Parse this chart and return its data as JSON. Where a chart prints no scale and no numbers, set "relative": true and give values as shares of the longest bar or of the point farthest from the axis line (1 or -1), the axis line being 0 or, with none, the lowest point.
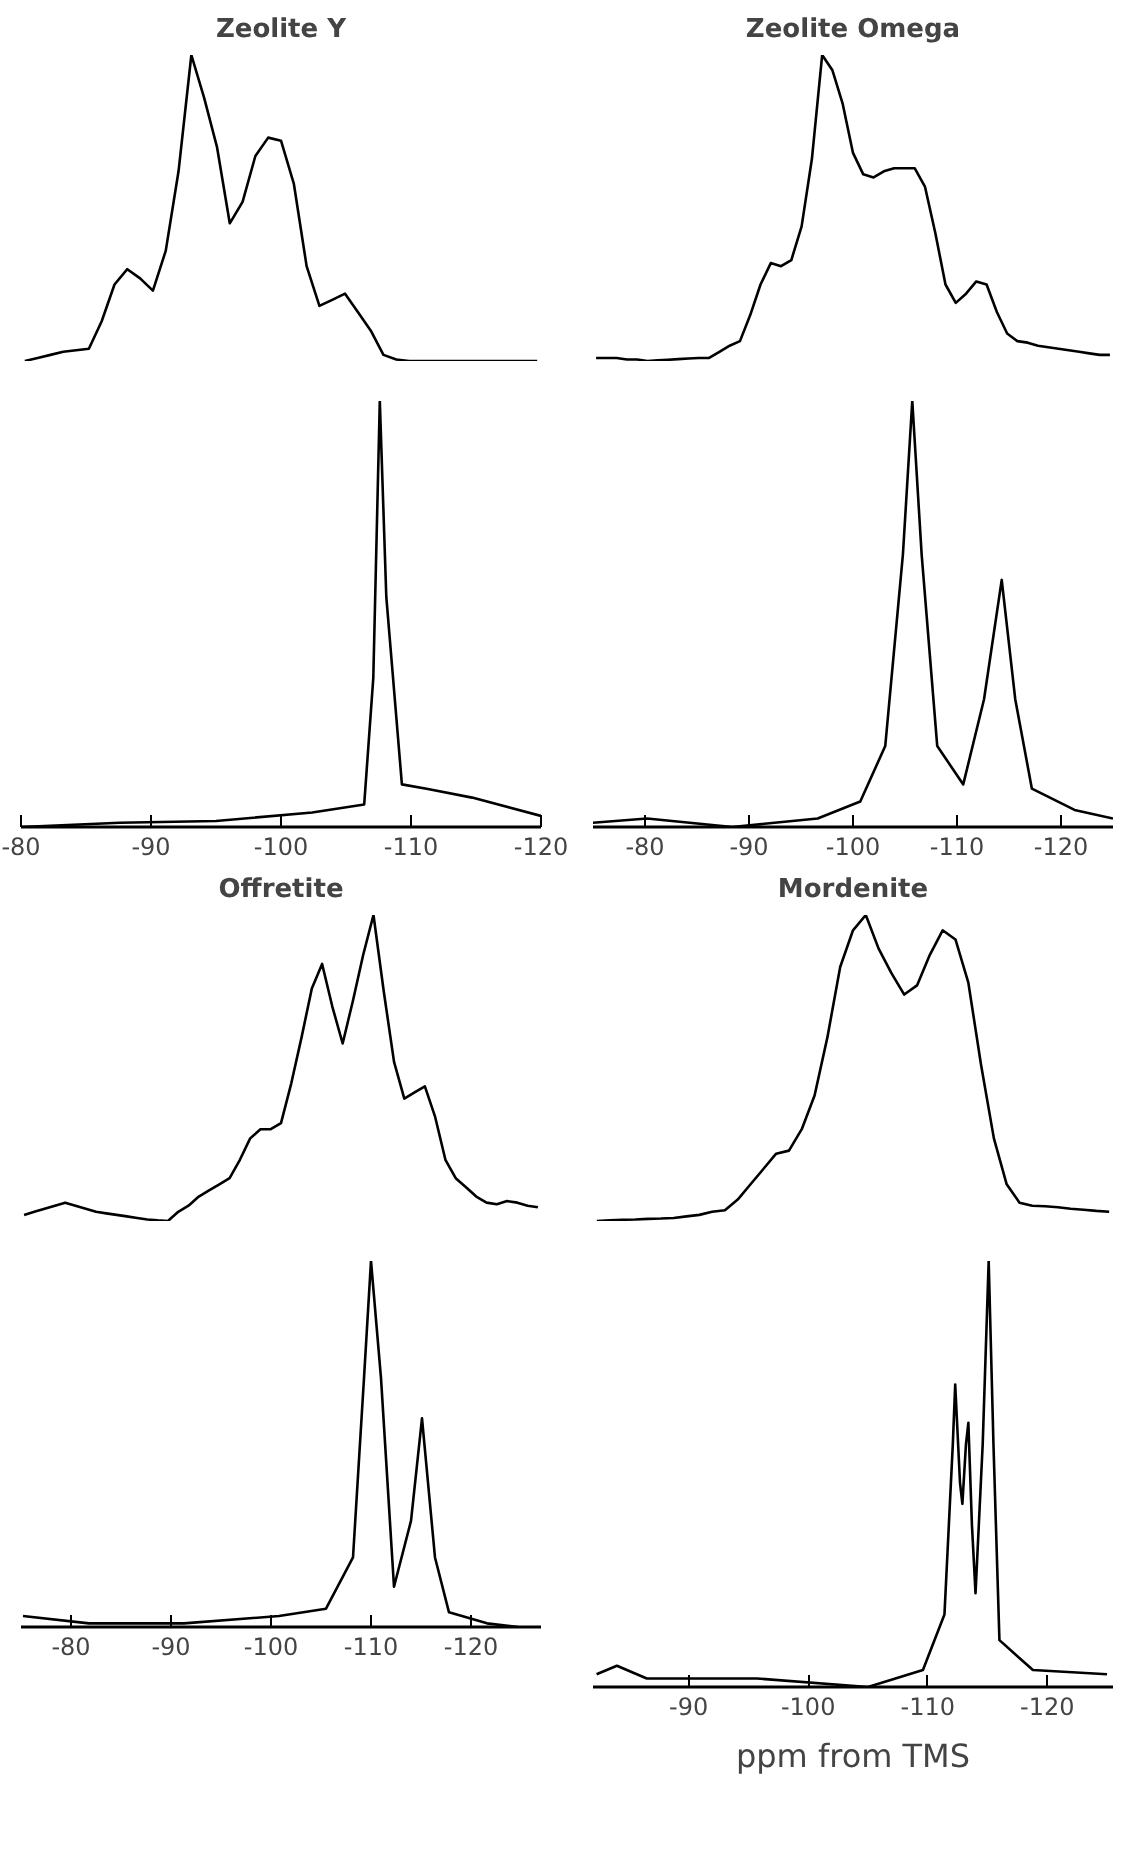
{
  "chart_data": [
    {
      "type": "line",
      "title": "Zeolite Y",
      "relative": true,
      "tick_labels": false,
      "categories": [
        null,
        null,
        null,
        null,
        null,
        null,
        null,
        null,
        null,
        null,
        null,
        null,
        null,
        null,
        null,
        null,
        null,
        null,
        null,
        null,
        null,
        null,
        null,
        null,
        null,
        null,
        null,
        null,
        null,
        null,
        null,
        null,
        null,
        null,
        null,
        null,
        null,
        null,
        null,
        null,
        null
      ],
      "series": [
        {
          "color": "#000000",
          "values": [
            0,
            0.01,
            0.02,
            0.03,
            0.035,
            0.04,
            0.13,
            0.25,
            0.3,
            0.27,
            0.23,
            0.36,
            0.62,
            1,
            0.86,
            0.7,
            0.45,
            0.52,
            0.67,
            0.73,
            0.72,
            0.58,
            0.31,
            0.18,
            0.2,
            0.22,
            0.16,
            0.1,
            0.02,
            0.005,
            0,
            0,
            0,
            0,
            0,
            0,
            0,
            0,
            0,
            0,
            0
          ]
        }
      ]
    },
    {
      "type": "line",
      "title": "Zeolite Omega",
      "relative": true,
      "tick_labels": false,
      "categories": [
        null,
        null,
        null,
        null,
        null,
        null,
        null,
        null,
        null,
        null,
        null,
        null,
        null,
        null,
        null,
        null,
        null,
        null,
        null,
        null,
        null,
        null,
        null,
        null,
        null,
        null,
        null,
        null,
        null,
        null,
        null,
        null,
        null,
        null,
        null,
        null,
        null,
        null,
        null,
        null,
        null,
        null,
        null,
        null,
        null,
        null,
        null,
        null,
        null,
        null,
        null
      ],
      "series": [
        {
          "color": "#000000",
          "values": [
            0.01,
            0.01,
            0.01,
            0.005,
            0.005,
            0,
            0.002,
            0.004,
            0.006,
            0.008,
            0.01,
            0.01,
            0.03,
            0.05,
            0.065,
            0.15,
            0.25,
            0.32,
            0.31,
            0.33,
            0.44,
            0.66,
            1,
            0.95,
            0.84,
            0.68,
            0.61,
            0.6,
            0.62,
            0.63,
            0.63,
            0.63,
            0.57,
            0.42,
            0.25,
            0.19,
            0.22,
            0.26,
            0.25,
            0.16,
            0.09,
            0.065,
            0.06,
            0.05,
            0.045,
            0.04,
            0.035,
            0.03,
            0.025,
            0.02,
            0.02
          ]
        }
      ]
    },
    {
      "type": "line",
      "relative": true,
      "tick_labels": "x",
      "xlim": [
        -80,
        -120
      ],
      "xticks": [
        -80,
        -90,
        -100,
        -110,
        -120
      ],
      "x": [
        -80,
        -87.6,
        -95.0,
        -102.4,
        -106.4,
        -107.1,
        -107.6,
        -108.1,
        -109.3,
        -111.3,
        -114.7,
        -120
      ],
      "series": [
        {
          "color": "#000000",
          "values": [
            0,
            0.01,
            0.014,
            0.034,
            0.053,
            0.35,
            1,
            0.54,
            0.1,
            0.089,
            0.069,
            0.026
          ]
        }
      ]
    },
    {
      "type": "line",
      "relative": true,
      "tick_labels": "x",
      "xlim": [
        -75,
        -125
      ],
      "xticks": [
        -80,
        -90,
        -100,
        -110,
        -120
      ],
      "x": [
        -75,
        -80.2,
        -88.4,
        -96.6,
        -100.7,
        -103.1,
        -104.8,
        -105.7,
        -106.6,
        -108.1,
        -110.6,
        -112.6,
        -114.3,
        -115.6,
        -117.2,
        -121.3,
        -125.0
      ],
      "series": [
        {
          "color": "#000000",
          "values": [
            0.01,
            0.02,
            0,
            0.02,
            0.06,
            0.19,
            0.64,
            1,
            0.64,
            0.19,
            0.1,
            0.3,
            0.58,
            0.3,
            0.09,
            0.04,
            0.02
          ]
        }
      ]
    },
    {
      "type": "line",
      "title": "Offretite",
      "relative": true,
      "tick_labels": false,
      "categories": [
        null,
        null,
        null,
        null,
        null,
        null,
        null,
        null,
        null,
        null,
        null,
        null,
        null,
        null,
        null,
        null,
        null,
        null,
        null,
        null,
        null,
        null,
        null,
        null,
        null,
        null,
        null,
        null,
        null,
        null,
        null,
        null,
        null,
        null,
        null,
        null,
        null,
        null,
        null,
        null,
        null,
        null,
        null,
        null,
        null,
        null,
        null,
        null,
        null,
        null,
        null
      ],
      "series": [
        {
          "color": "#000000",
          "values": [
            0.02,
            0.03,
            0.04,
            0.05,
            0.06,
            0.05,
            0.04,
            0.03,
            0.025,
            0.02,
            0.015,
            0.01,
            0.005,
            0.002,
            0,
            0.03,
            0.05,
            0.08,
            0.1,
            0.12,
            0.14,
            0.2,
            0.27,
            0.3,
            0.3,
            0.32,
            0.45,
            0.6,
            0.76,
            0.84,
            0.7,
            0.58,
            0.72,
            0.87,
            1,
            0.75,
            0.52,
            0.4,
            0.42,
            0.44,
            0.34,
            0.2,
            0.14,
            0.11,
            0.08,
            0.06,
            0.055,
            0.065,
            0.06,
            0.05,
            0.045
          ]
        }
      ]
    },
    {
      "type": "line",
      "title": "Mordenite",
      "relative": true,
      "tick_labels": false,
      "categories": [
        null,
        null,
        null,
        null,
        null,
        null,
        null,
        null,
        null,
        null,
        null,
        null,
        null,
        null,
        null,
        null,
        null,
        null,
        null,
        null,
        null,
        null,
        null,
        null,
        null,
        null,
        null,
        null,
        null,
        null,
        null,
        null,
        null,
        null,
        null,
        null,
        null,
        null,
        null,
        null,
        null
      ],
      "series": [
        {
          "color": "#000000",
          "values": [
            0,
            0.002,
            0.004,
            0.005,
            0.007,
            0.008,
            0.01,
            0.015,
            0.02,
            0.03,
            0.035,
            0.07,
            0.12,
            0.17,
            0.22,
            0.23,
            0.3,
            0.41,
            0.6,
            0.83,
            0.95,
            1,
            0.89,
            0.81,
            0.74,
            0.77,
            0.87,
            0.95,
            0.92,
            0.78,
            0.51,
            0.27,
            0.12,
            0.06,
            0.05,
            0.048,
            0.045,
            0.04,
            0.037,
            0.033,
            0.03
          ]
        }
      ]
    },
    {
      "type": "line",
      "relative": true,
      "tick_labels": "x",
      "xlim": [
        -75,
        -127
      ],
      "xticks": [
        -80,
        -90,
        -100,
        -110,
        -120
      ],
      "x": [
        -75.2,
        -81.8,
        -91.3,
        -100.8,
        -105.5,
        -108.2,
        -109.3,
        -110.0,
        -111.0,
        -112.3,
        -114.0,
        -115.1,
        -116.4,
        -117.8,
        -121.6,
        -124.7
      ],
      "series": [
        {
          "color": "#000000",
          "values": [
            0.03,
            0.01,
            0.01,
            0.03,
            0.05,
            0.19,
            0.68,
            1,
            0.68,
            0.11,
            0.29,
            0.57,
            0.19,
            0.04,
            0.01,
            0
          ]
        }
      ]
    },
    {
      "type": "line",
      "relative": true,
      "tick_labels": "x",
      "xlabel": "ppm from TMS",
      "xlim": [
        -82,
        -125.5
      ],
      "xticks": [
        -90,
        -100,
        -110,
        -120
      ],
      "x": [
        -82.3,
        -84.0,
        -86.5,
        -95.7,
        -105.0,
        -109.6,
        -111.4,
        -112.1,
        -112.3,
        -112.7,
        -112.9,
        -113.2,
        -113.4,
        -113.7,
        -114.0,
        -114.6,
        -115.1,
        -115.5,
        -116.0,
        -118.8,
        -125.0
      ],
      "series": [
        {
          "color": "#000000",
          "values": [
            0.03,
            0.05,
            0.02,
            0.02,
            0,
            0.04,
            0.17,
            0.57,
            0.71,
            0.48,
            0.43,
            0.57,
            0.62,
            0.38,
            0.22,
            0.57,
            1,
            0.57,
            0.11,
            0.04,
            0.03
          ]
        }
      ]
    }
  ]
}
